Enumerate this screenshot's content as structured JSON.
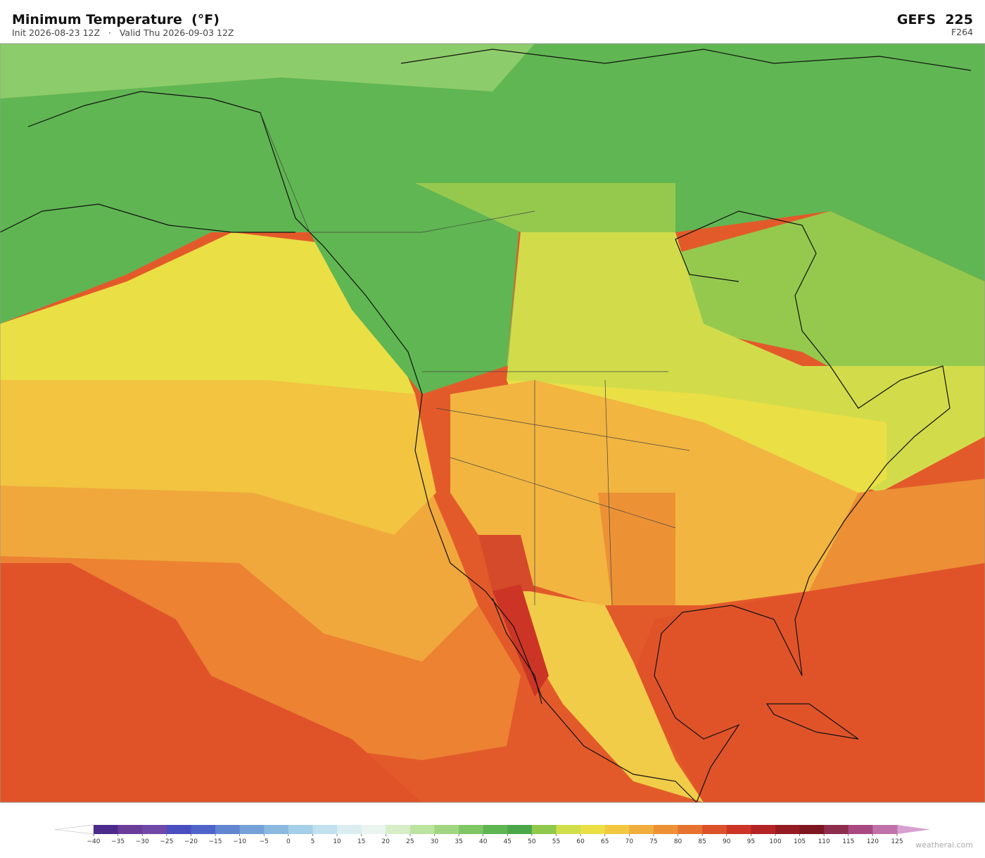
{
  "header": {
    "title": "Minimum Temperature  (°F)",
    "subtitle": "Init 2026-08-23 12Z   ·   Valid Thu 2026-09-03 12Z",
    "model": "GEFS  225",
    "forecast_hour": "F264"
  },
  "colorbar": {
    "ticks": [
      {
        "value": -40,
        "label": "−40"
      },
      {
        "value": -35,
        "label": "−35"
      },
      {
        "value": -30,
        "label": "−30"
      },
      {
        "value": -25,
        "label": "−25"
      },
      {
        "value": -20,
        "label": "−20"
      },
      {
        "value": -15,
        "label": "−15"
      },
      {
        "value": -10,
        "label": "−10"
      },
      {
        "value": -5,
        "label": "−5"
      },
      0,
      5,
      10,
      15,
      20,
      25,
      30,
      35,
      40,
      45,
      50,
      55,
      60,
      65,
      70,
      75,
      80,
      85,
      90,
      95,
      100,
      105,
      110,
      115,
      120,
      125
    ],
    "colors": [
      "#4b2a8c",
      "#6a3d9a",
      "#7048a8",
      "#4a4ec0",
      "#4f64c8",
      "#6285d0",
      "#76a0d8",
      "#8cb9e0",
      "#a5cfe8",
      "#c2e0ee",
      "#daeef2",
      "#e9f5ee",
      "#d6edc8",
      "#bde3a0",
      "#a0d67f",
      "#7fc665",
      "#5eb552",
      "#4aa84a",
      "#8fc84a",
      "#d0de4a",
      "#eadf45",
      "#f2c840",
      "#f0ae3c",
      "#ec9235",
      "#e6732e",
      "#dc5129",
      "#cc3526",
      "#b52424",
      "#961a22",
      "#7e1620",
      "#8e2c4c",
      "#a84a80",
      "#c072a8"
    ],
    "under_color": "#ffffff",
    "over_color": "#d8a0d0"
  },
  "footer": {
    "watermark": "weatherai.com"
  }
}
